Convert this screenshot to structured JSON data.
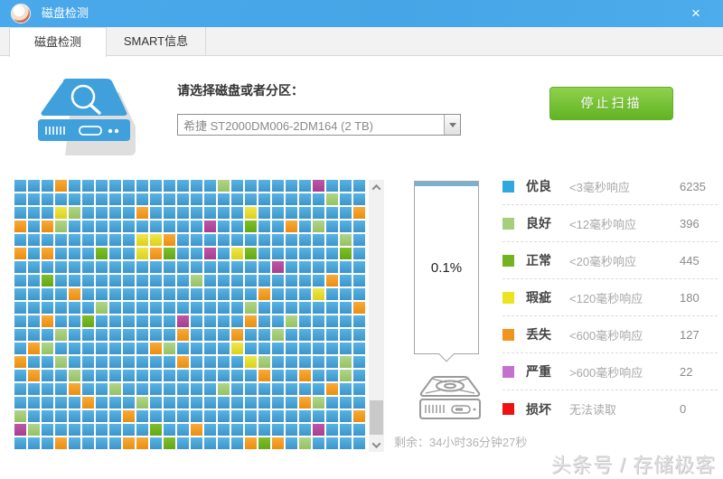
{
  "window": {
    "title": "磁盘检测",
    "close_icon": "×",
    "titlebar_color": "#47A7E8"
  },
  "tabs": [
    {
      "label": "磁盘检测",
      "active": true
    },
    {
      "label": "SMART信息",
      "active": false
    }
  ],
  "selector": {
    "label": "请选择磁盘或者分区：",
    "value": "希捷 ST2000DM006-2DM164  (2 TB)"
  },
  "scan_button": {
    "label": "停止扫描",
    "color": "#6CBF2E"
  },
  "progress": {
    "percent": "0.1%",
    "fill_color": "#79B1CF",
    "remaining": "剩余：34小时36分钟27秒"
  },
  "legend": [
    {
      "name": "优良",
      "desc": "<3毫秒响应",
      "count": "6235",
      "color": "#2FA8DF"
    },
    {
      "name": "良好",
      "desc": "<12毫秒响应",
      "count": "396",
      "color": "#A5CE7D"
    },
    {
      "name": "正常",
      "desc": "<20毫秒响应",
      "count": "445",
      "color": "#72B41F"
    },
    {
      "name": "瑕疵",
      "desc": "<120毫秒响应",
      "count": "180",
      "color": "#E9E320"
    },
    {
      "name": "丢失",
      "desc": "<600毫秒响应",
      "count": "127",
      "color": "#F1931D"
    },
    {
      "name": "严重",
      "desc": ">600毫秒响应",
      "count": "22",
      "color": "#C470CE"
    },
    {
      "name": "损坏",
      "desc": "无法读取",
      "count": "0",
      "color": "#ED1111"
    }
  ],
  "grid": {
    "columns": 26,
    "palette": {
      "b": [
        "#58B4E4",
        "#3E94C9"
      ],
      "g": [
        "#AFD58A",
        "#95C263"
      ],
      "G": [
        "#7FBE2E",
        "#63A914"
      ],
      "y": [
        "#EDE74D",
        "#DBD11B"
      ],
      "o": [
        "#F7AB3A",
        "#EA8E10"
      ],
      "m": [
        "#BD58A6",
        "#A53E90"
      ],
      "r": [
        "#F02020",
        "#D01010"
      ]
    },
    "rows": [
      "bbbobbbbbbbbbbbgbbbbbbmbbb",
      "bbbbbbbbbbbbbbbbbbbbbbbgbb",
      "bbbygbbbbobbbbbbbybbbbbbbo",
      "obogbbbbbbbbbbmbbGbbobgbbb",
      "bbbbbbbbbyyobbbbbbbbbbbbgb",
      "obobbbGbbyoGbbmbyGbbbbbbGb",
      "bbbbbbbbbbbbbbbbbbbmbbbbbb",
      "bbGbbbbbbbbbbgbbbbbbbbbobb",
      "bbbbobbbbbbbbbbbbbobbbybbb",
      "bbbbbbgbbbbbbbbbbgbbbbbbbo",
      "bbobbGbbbbbbmbbbbobbgbbbbb",
      "bbbgbbbbbbbbobbbobbgbbbbbb",
      "bogbbbbbbbogbbbbybbbbbbbbb",
      "obbgbbbbbbbbobbbbygbbbbbgb",
      "bobbgbbbbbbbbbbbbbobbobbgb",
      "bbbbobbgbbbbbbbgbbbbbbbobb",
      "bbbbbobbbgbbbbbbbbbbbogbbb",
      "gbbbbbbbobbbbbbbbbbbbbbbbo",
      "mgbbbbbbbbGbbobbbbbbbbmbbb",
      "bbbobbbboobGbbbbboGobgbbbb"
    ]
  },
  "watermark": "头条号 / 存储极客"
}
